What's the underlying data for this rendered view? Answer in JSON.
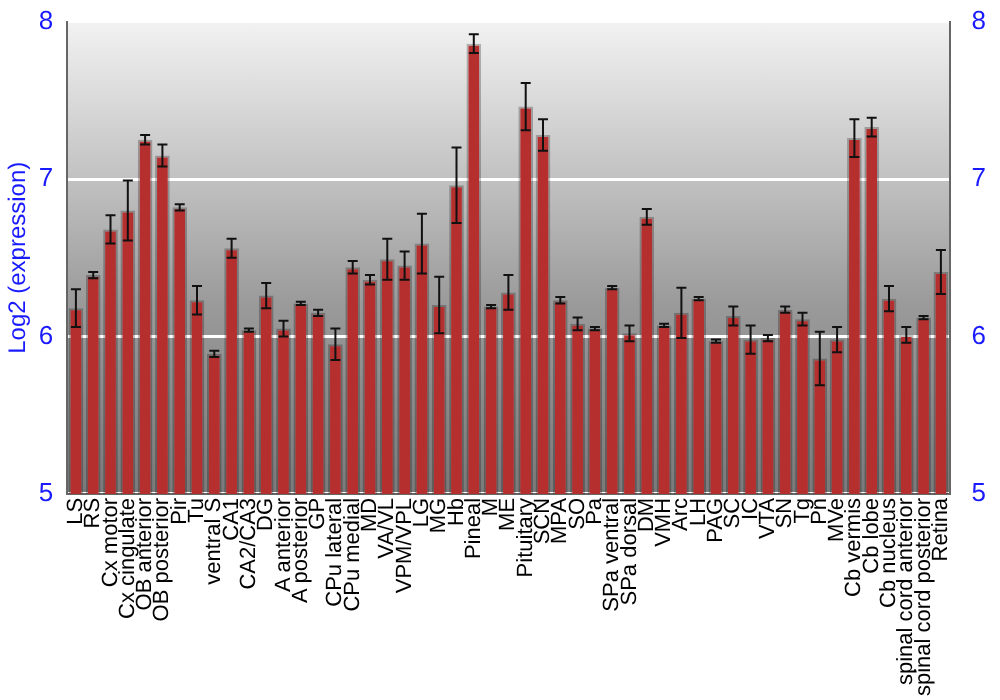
{
  "chart_data": {
    "type": "bar",
    "ylabel": "Log2 (expression)",
    "categories": [
      "LS",
      "RS",
      "Cx motor",
      "Cx cingulate",
      "OB anterior",
      "OB posterior",
      "Pir",
      "Tu",
      "ventral S",
      "CA1",
      "CA2/CA3",
      "DG",
      "A anterior",
      "A posterior",
      "GP",
      "CPu lateral",
      "CPu medial",
      "MD",
      "VA/VL",
      "VPM/VPL",
      "LG",
      "MG",
      "Hb",
      "Pineal",
      "M",
      "ME",
      "Pituitary",
      "SCN",
      "MPA",
      "SO",
      "Pa",
      "SPa ventral",
      "SPa dorsal",
      "DM",
      "VMH",
      "Arc",
      "LH",
      "PAG",
      "SC",
      "IC",
      "VTA",
      "SN",
      "Tg",
      "Pn",
      "MVe",
      "Cb vermis",
      "Cb lobe",
      "Cb nucleus",
      "spinal cord anterior",
      "spinal cord posterior",
      "Retina"
    ],
    "values": [
      6.18,
      6.39,
      6.68,
      6.8,
      7.25,
      7.15,
      6.82,
      6.23,
      5.89,
      6.56,
      6.04,
      6.26,
      6.05,
      6.21,
      6.15,
      5.95,
      6.44,
      6.36,
      6.49,
      6.45,
      6.59,
      6.2,
      6.96,
      7.86,
      6.19,
      6.28,
      7.46,
      7.28,
      6.23,
      6.08,
      6.05,
      6.31,
      6.02,
      6.76,
      6.07,
      6.15,
      6.24,
      5.97,
      6.13,
      5.98,
      5.99,
      6.17,
      6.11,
      5.86,
      5.98,
      7.26,
      7.33,
      6.24,
      6.01,
      6.12,
      6.41
    ],
    "errors": [
      0.12,
      0.02,
      0.09,
      0.19,
      0.03,
      0.07,
      0.02,
      0.09,
      0.02,
      0.06,
      0.01,
      0.08,
      0.05,
      0.01,
      0.02,
      0.1,
      0.04,
      0.03,
      0.13,
      0.09,
      0.19,
      0.18,
      0.24,
      0.06,
      0.01,
      0.11,
      0.15,
      0.1,
      0.02,
      0.04,
      0.01,
      0.01,
      0.05,
      0.05,
      0.01,
      0.16,
      0.01,
      0.01,
      0.06,
      0.09,
      0.02,
      0.02,
      0.04,
      0.17,
      0.08,
      0.12,
      0.06,
      0.08,
      0.05,
      0.01,
      0.14
    ],
    "color": "#b52f2f",
    "ylim": [
      5,
      8
    ],
    "yticks": [
      5,
      6,
      7,
      8
    ],
    "y2lim": [
      5,
      8
    ],
    "y2ticks": [
      5,
      6,
      7,
      8
    ],
    "grid": "y"
  }
}
